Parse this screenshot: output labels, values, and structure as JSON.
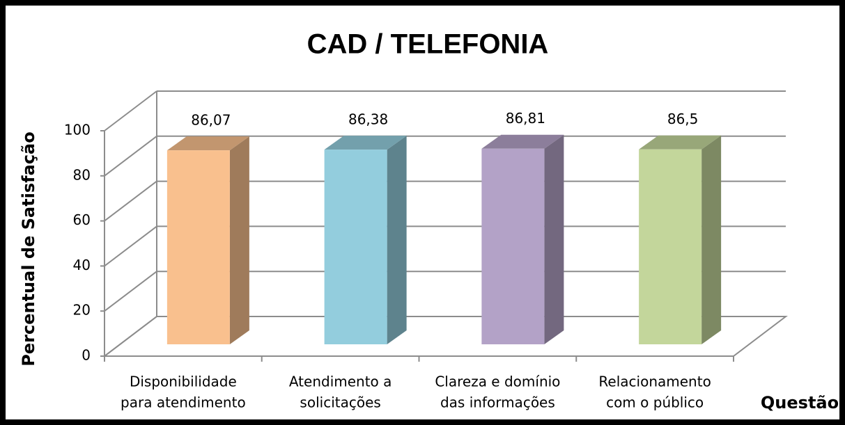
{
  "chart_data": {
    "type": "bar3d",
    "title": "CAD / TELEFONIA",
    "y_label": "Percentual de Satisfação",
    "x_label": "Questão",
    "categories": [
      [
        "Disponibilidade",
        "para atendimento"
      ],
      [
        "Atendimento a",
        "solicitações"
      ],
      [
        "Clareza e domínio",
        "das informações"
      ],
      [
        "Relacionamento",
        "com o público"
      ]
    ],
    "values": [
      86.07,
      86.38,
      86.81,
      86.5
    ],
    "value_labels": [
      "86,07",
      "86,38",
      "86,81",
      "86,5"
    ],
    "colors": [
      "#f9c08e",
      "#93cddd",
      "#b3a2c7",
      "#c3d69b"
    ],
    "ylim": [
      0,
      100
    ],
    "yticks": [
      0,
      20,
      40,
      60,
      80,
      100
    ],
    "grid": true
  }
}
